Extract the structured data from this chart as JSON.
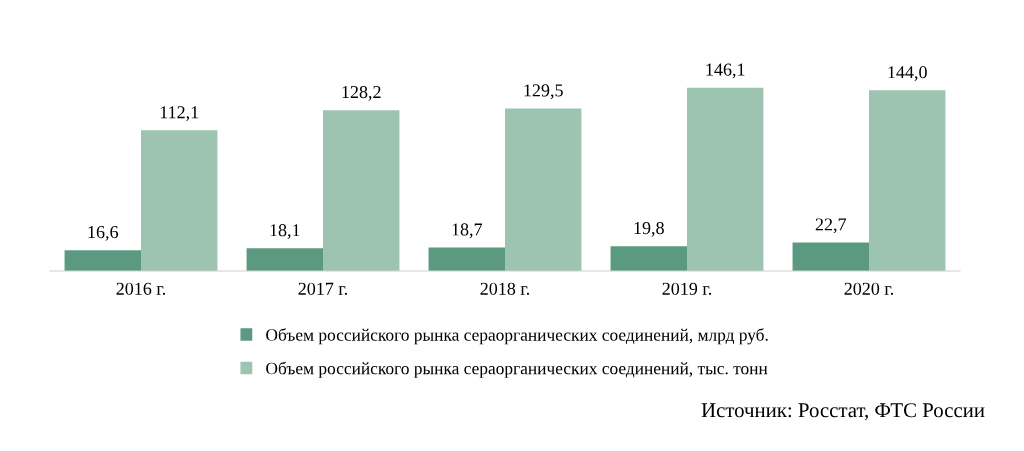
{
  "chart_data": {
    "type": "bar",
    "categories": [
      "2016 г.",
      "2017 г.",
      "2018 г.",
      "2019 г.",
      "2020 г."
    ],
    "series": [
      {
        "name": "Объем российского рынка сераорганических соединений, млрд руб.",
        "color": "#5b9a80",
        "values": [
          16.6,
          18.1,
          18.7,
          19.8,
          22.7
        ],
        "value_labels": [
          "16,6",
          "18,1",
          "18,7",
          "19,8",
          "22,7"
        ]
      },
      {
        "name": "Объем российского рынка сераорганических соединений, тыс. тонн",
        "color": "#9dc3b1",
        "values": [
          112.1,
          128.2,
          129.5,
          146.1,
          144.0
        ],
        "value_labels": [
          "112,1",
          "128,2",
          "129,5",
          "146,1",
          "144,0"
        ]
      }
    ],
    "grid": false,
    "legend": "bottom",
    "annotations": [
      "Источник: Росстат, ФТС России"
    ]
  }
}
